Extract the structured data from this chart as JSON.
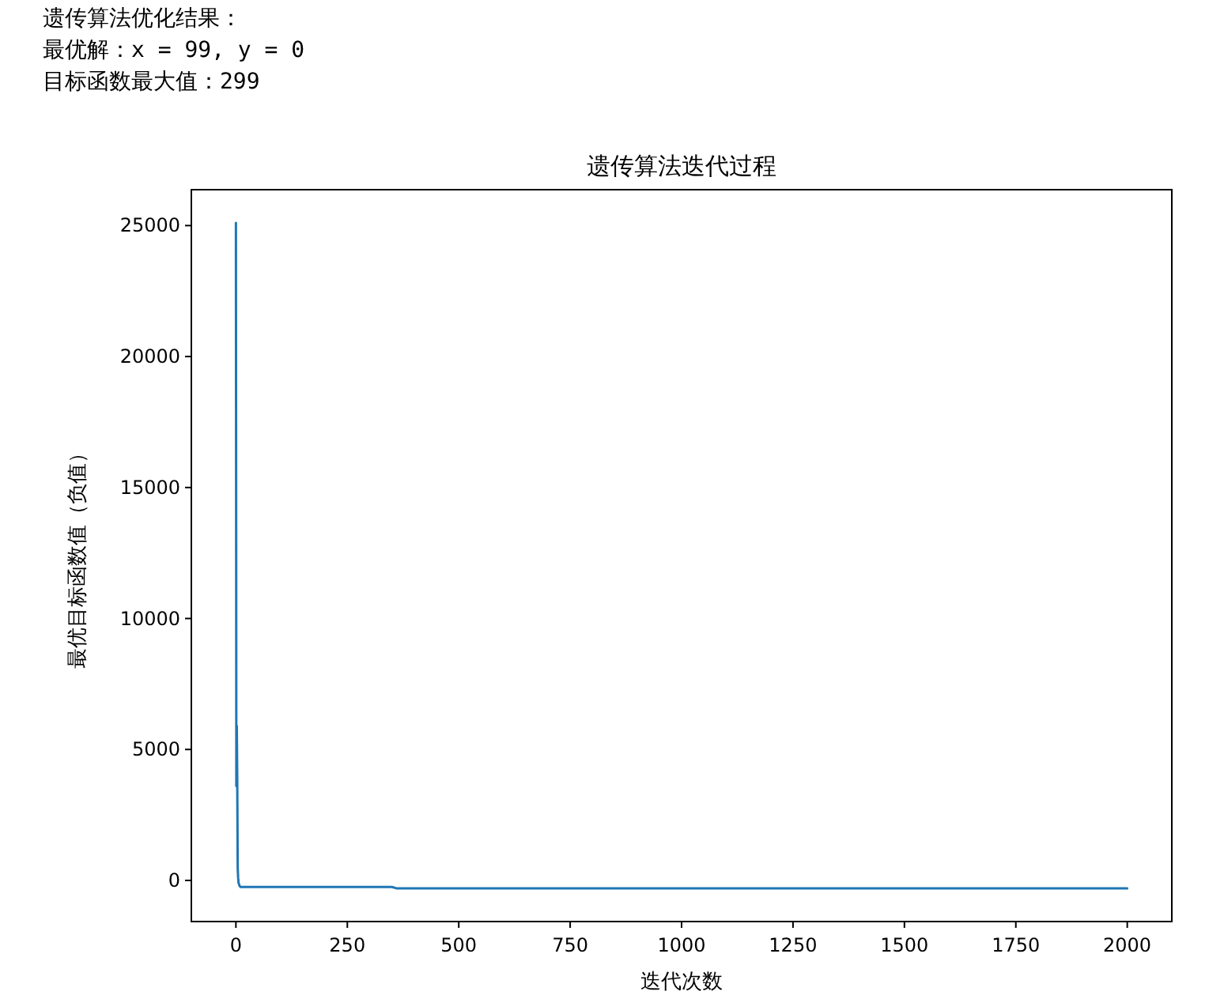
{
  "chart_data": {
    "type": "line",
    "title": "遗传算法迭代过程",
    "xlabel": "迭代次数",
    "ylabel": "最优目标函数值（负值）",
    "annotations": [
      "遗传算法优化结果：",
      "最优解：x = 99, y = 0",
      "目标函数最大值：299"
    ],
    "series": [
      {
        "color": "#1f77b4",
        "x": [
          0,
          1,
          2,
          3,
          4,
          5,
          6,
          8,
          10,
          20,
          50,
          100,
          200,
          350,
          360,
          500,
          1000,
          1500,
          2000
        ],
        "values": [
          25100,
          3600,
          5900,
          3800,
          500,
          100,
          -100,
          -200,
          -250,
          -250,
          -250,
          -250,
          -250,
          -250,
          -300,
          -300,
          -300,
          -300,
          -300
        ]
      }
    ],
    "xlim": [
      -100,
      2100
    ],
    "ylim": [
      -1570,
      26370
    ],
    "xticks": [
      0,
      250,
      500,
      750,
      1000,
      1250,
      1500,
      1750,
      2000
    ],
    "yticks": [
      0,
      5000,
      10000,
      15000,
      20000,
      25000
    ],
    "grid": false
  }
}
